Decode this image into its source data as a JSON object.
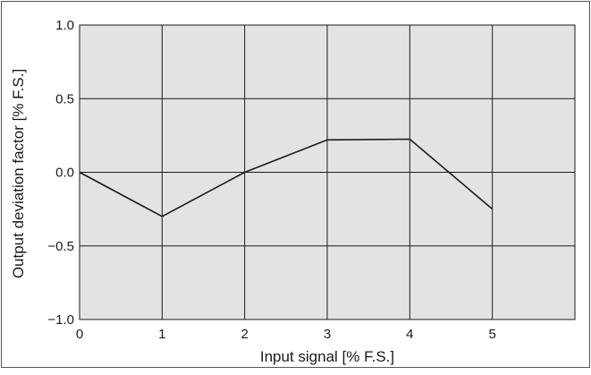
{
  "chart_data": {
    "type": "line",
    "title": "",
    "xlabel": "Input signal   [% F.S.]",
    "ylabel": "Output deviation factor   [% F.S.]",
    "xlim": [
      0,
      6
    ],
    "ylim": [
      -1.0,
      1.0
    ],
    "x_ticks": [
      0,
      1,
      2,
      3,
      4,
      5
    ],
    "x_tick_labels": [
      "0",
      "1",
      "2",
      "3",
      "4",
      "5"
    ],
    "y_ticks": [
      -1.0,
      -0.5,
      0.0,
      0.5,
      1.0
    ],
    "y_tick_labels": [
      "−1.0",
      "−0.5",
      "0.0",
      "0.5",
      "1.0"
    ],
    "grid": true,
    "series": [
      {
        "x": [
          0,
          1,
          2,
          3,
          4,
          5
        ],
        "values": [
          0.0,
          -0.3,
          0.0,
          0.22,
          0.225,
          -0.25
        ]
      }
    ],
    "colors": {
      "plot_background": "#e3e3e3",
      "grid": "#1a1a1a",
      "line": "#1a1a1a",
      "frame": "#555555"
    }
  }
}
